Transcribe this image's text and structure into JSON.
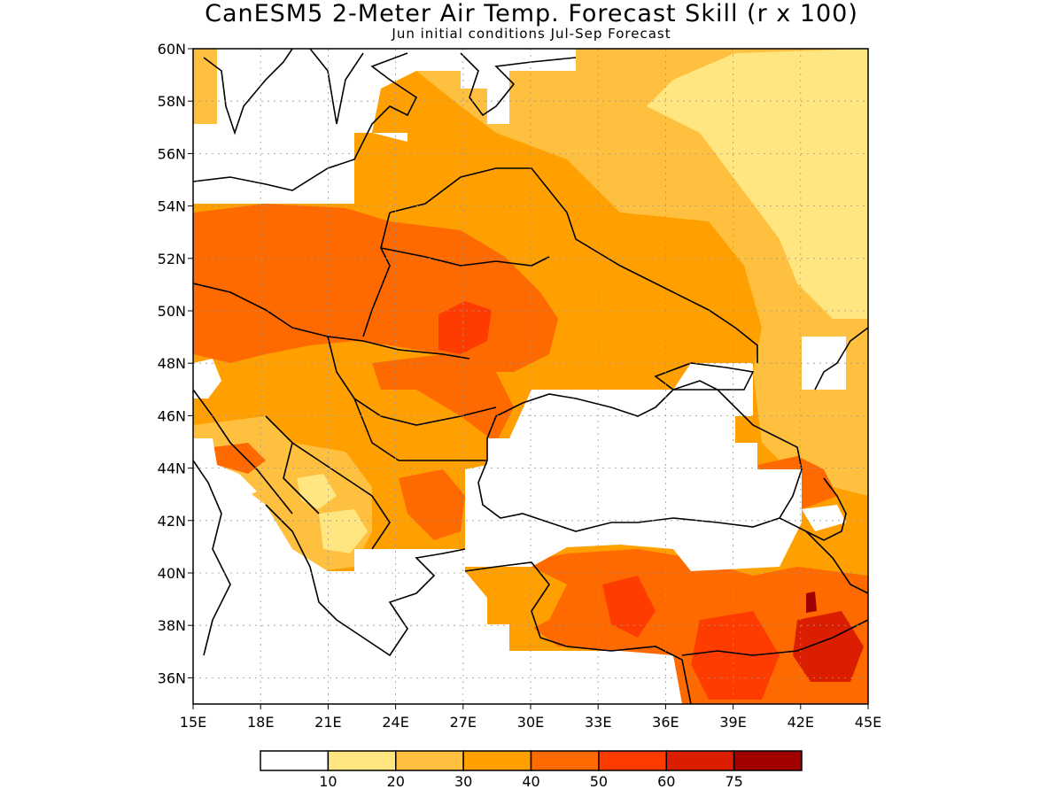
{
  "title": "CanESM5 2-Meter Air Temp. Forecast Skill (r x 100)",
  "subtitle": "Jun initial conditions  Jul-Sep Forecast",
  "map": {
    "lon_range": [
      15,
      45
    ],
    "lat_range": [
      35,
      60
    ],
    "lon_ticks": [
      "15E",
      "18E",
      "21E",
      "24E",
      "27E",
      "30E",
      "33E",
      "36E",
      "39E",
      "42E",
      "45E"
    ],
    "lat_ticks": [
      "36N",
      "38N",
      "40N",
      "42N",
      "44N",
      "46N",
      "48N",
      "50N",
      "52N",
      "54N",
      "56N",
      "58N",
      "60N"
    ],
    "grid": "dotted"
  },
  "legend": {
    "colors": [
      "#ffffff",
      "#ffe680",
      "#ffc040",
      "#ffa000",
      "#ff6a00",
      "#ff3c00",
      "#dc1e00",
      "#a00000"
    ],
    "labels": [
      "10",
      "20",
      "30",
      "40",
      "50",
      "60",
      "75"
    ]
  }
}
